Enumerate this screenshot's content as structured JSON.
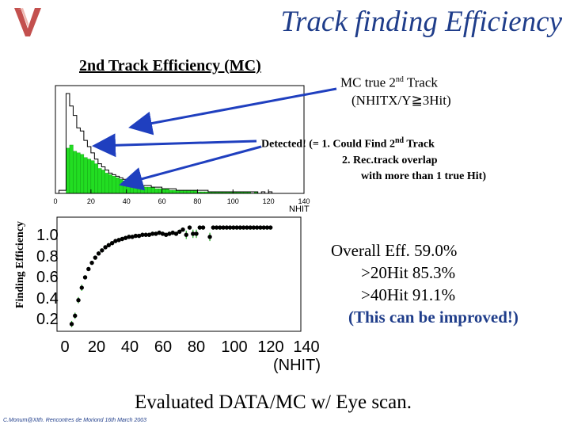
{
  "slide": {
    "title": "Track finding Efficiency",
    "subtitle": "2nd Track Efficiency (MC)",
    "logo_letter": "V",
    "mc_note": {
      "line1_pre": "MC true 2",
      "line1_sup": "nd",
      "line1_post": " Track",
      "line2": "(NHITX/Y≧3Hit)"
    },
    "detected_note": {
      "line1_a": "Detected!   (= 1.  Could Find 2",
      "line1_sup": "nd",
      "line1_b": " Track",
      "line2": "2.  Rec.track overlap",
      "line3": "with more than 1 true Hit)"
    },
    "overall": {
      "line1": "Overall Eff. 59.0%",
      "line2": ">20Hit  85.3%",
      "line3": ">40Hit  91.1%",
      "line4": "(This can be improved!)"
    },
    "footer": "Evaluated DATA/MC w/ Eye scan.",
    "credit": "C.Monum@XIth. Rencontres de Moriond 16th March 2003",
    "colors": {
      "title": "#1f3d8a",
      "logo": "#b8312f",
      "arrow": "#1f3fbf",
      "fill": "#22dd22",
      "line": "#000000",
      "errbar": "#22aa22"
    }
  },
  "chart_data": [
    {
      "type": "bar",
      "title": "",
      "xlabel": "NHIT",
      "xlim": [
        0,
        140
      ],
      "x_ticks": [
        "0",
        "20",
        "40",
        "60",
        "80",
        "100",
        "120",
        "140"
      ],
      "bin_width": 2,
      "series": [
        {
          "name": "MC true 2nd Track",
          "values": [
            0,
            2,
            2,
            64,
            56,
            50,
            42,
            40,
            34,
            30,
            26,
            22,
            19,
            17,
            15,
            13,
            12,
            11,
            10,
            9,
            8,
            7,
            7,
            6,
            5,
            5,
            5,
            4,
            4,
            4,
            3,
            3,
            3,
            3,
            2,
            2,
            2,
            2,
            2,
            2,
            2,
            2,
            2,
            1,
            1,
            1,
            1,
            1,
            1,
            1,
            1,
            1,
            1,
            1,
            1,
            1,
            1,
            0,
            1,
            0,
            1,
            0,
            0,
            0,
            0,
            0,
            0,
            0,
            0,
            0
          ]
        },
        {
          "name": "Detected!",
          "values": [
            0,
            0,
            0,
            29,
            31,
            27,
            26,
            25,
            23,
            22,
            21,
            19,
            16,
            15,
            13,
            12,
            11,
            10,
            9,
            8,
            7,
            6,
            6,
            5,
            5,
            4,
            4,
            4,
            3,
            3,
            3,
            3,
            2,
            2,
            2,
            2,
            2,
            2,
            2,
            2,
            1,
            1,
            1,
            1,
            1,
            1,
            1,
            1,
            1,
            1,
            1,
            1,
            1,
            1,
            1,
            0,
            1,
            0,
            0,
            0,
            0,
            0,
            0,
            0,
            0,
            0,
            0,
            0,
            0,
            0
          ]
        }
      ]
    },
    {
      "type": "scatter",
      "title": "",
      "ylabel": "Finding Efficiency",
      "xlabel": "(NHIT)",
      "xlim": [
        0,
        140
      ],
      "ylim": [
        0,
        1.1
      ],
      "x_ticks": [
        "0",
        "20",
        "40",
        "60",
        "80",
        "100",
        "120",
        "140"
      ],
      "y_ticks": [
        "1.0",
        "0.8",
        "0.6",
        "0.4",
        "0.2"
      ],
      "points": [
        {
          "x": 4,
          "y": 0.07,
          "err": 0.03
        },
        {
          "x": 6,
          "y": 0.15,
          "err": 0.03
        },
        {
          "x": 8,
          "y": 0.3,
          "err": 0.03
        },
        {
          "x": 10,
          "y": 0.42,
          "err": 0.03
        },
        {
          "x": 12,
          "y": 0.52,
          "err": 0.02
        },
        {
          "x": 14,
          "y": 0.6,
          "err": 0.02
        },
        {
          "x": 16,
          "y": 0.66,
          "err": 0.02
        },
        {
          "x": 18,
          "y": 0.71,
          "err": 0.02
        },
        {
          "x": 20,
          "y": 0.75,
          "err": 0.02
        },
        {
          "x": 22,
          "y": 0.78,
          "err": 0.02
        },
        {
          "x": 24,
          "y": 0.81,
          "err": 0.02
        },
        {
          "x": 26,
          "y": 0.83,
          "err": 0.02
        },
        {
          "x": 28,
          "y": 0.85,
          "err": 0.02
        },
        {
          "x": 30,
          "y": 0.87,
          "err": 0.02
        },
        {
          "x": 32,
          "y": 0.88,
          "err": 0.02
        },
        {
          "x": 34,
          "y": 0.89,
          "err": 0.02
        },
        {
          "x": 36,
          "y": 0.9,
          "err": 0.02
        },
        {
          "x": 38,
          "y": 0.91,
          "err": 0.02
        },
        {
          "x": 40,
          "y": 0.91,
          "err": 0.02
        },
        {
          "x": 42,
          "y": 0.92,
          "err": 0.02
        },
        {
          "x": 44,
          "y": 0.92,
          "err": 0.02
        },
        {
          "x": 46,
          "y": 0.93,
          "err": 0.02
        },
        {
          "x": 48,
          "y": 0.93,
          "err": 0.02
        },
        {
          "x": 50,
          "y": 0.93,
          "err": 0.02
        },
        {
          "x": 52,
          "y": 0.94,
          "err": 0.02
        },
        {
          "x": 54,
          "y": 0.94,
          "err": 0.02
        },
        {
          "x": 56,
          "y": 0.95,
          "err": 0.02
        },
        {
          "x": 58,
          "y": 0.94,
          "err": 0.02
        },
        {
          "x": 60,
          "y": 0.93,
          "err": 0.02
        },
        {
          "x": 62,
          "y": 0.94,
          "err": 0.02
        },
        {
          "x": 64,
          "y": 0.95,
          "err": 0.02
        },
        {
          "x": 66,
          "y": 0.94,
          "err": 0.02
        },
        {
          "x": 68,
          "y": 0.96,
          "err": 0.02
        },
        {
          "x": 70,
          "y": 0.98,
          "err": 0.02
        },
        {
          "x": 72,
          "y": 0.93,
          "err": 0.04
        },
        {
          "x": 74,
          "y": 1.0,
          "err": 0.02
        },
        {
          "x": 76,
          "y": 0.94,
          "err": 0.04
        },
        {
          "x": 78,
          "y": 0.94,
          "err": 0.04
        },
        {
          "x": 80,
          "y": 1.0,
          "err": 0.02
        },
        {
          "x": 82,
          "y": 1.0,
          "err": 0.02
        },
        {
          "x": 86,
          "y": 0.91,
          "err": 0.04
        },
        {
          "x": 88,
          "y": 1.0,
          "err": 0.02
        },
        {
          "x": 90,
          "y": 1.0,
          "err": 0.02
        },
        {
          "x": 92,
          "y": 1.0,
          "err": 0.02
        },
        {
          "x": 94,
          "y": 1.0,
          "err": 0.02
        },
        {
          "x": 96,
          "y": 1.0,
          "err": 0.02
        },
        {
          "x": 98,
          "y": 1.0,
          "err": 0.02
        },
        {
          "x": 100,
          "y": 1.0,
          "err": 0.02
        },
        {
          "x": 102,
          "y": 1.0,
          "err": 0.02
        },
        {
          "x": 104,
          "y": 1.0,
          "err": 0.02
        },
        {
          "x": 106,
          "y": 1.0,
          "err": 0.02
        },
        {
          "x": 108,
          "y": 1.0,
          "err": 0.02
        },
        {
          "x": 110,
          "y": 1.0,
          "err": 0.02
        },
        {
          "x": 112,
          "y": 1.0,
          "err": 0.02
        },
        {
          "x": 114,
          "y": 1.0,
          "err": 0.02
        },
        {
          "x": 116,
          "y": 1.0,
          "err": 0.02
        },
        {
          "x": 118,
          "y": 1.0,
          "err": 0.02
        },
        {
          "x": 120,
          "y": 1.0,
          "err": 0.02
        },
        {
          "x": 122,
          "y": 1.0,
          "err": 0.02
        }
      ]
    }
  ]
}
